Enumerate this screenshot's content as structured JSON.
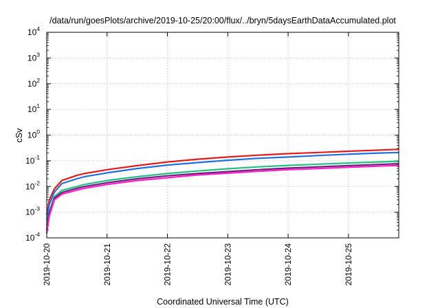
{
  "chart_data": {
    "type": "line",
    "title": "/data/run/goesPlots/archive/2019-10-25/20:00/flux/../bryn/5daysEarthDataAccumulated.plot",
    "xlabel": "Coordinated Universal Time (UTC)",
    "ylabel": "cSv",
    "yscale": "log",
    "ylim": [
      0.0001,
      10000
    ],
    "y_ticks": [
      {
        "base": "10",
        "exp": "-4"
      },
      {
        "base": "10",
        "exp": "-3"
      },
      {
        "base": "10",
        "exp": "-2"
      },
      {
        "base": "10",
        "exp": "-1"
      },
      {
        "base": "10",
        "exp": "0"
      },
      {
        "base": "10",
        "exp": "1"
      },
      {
        "base": "10",
        "exp": "2"
      },
      {
        "base": "10",
        "exp": "3"
      },
      {
        "base": "10",
        "exp": "4"
      }
    ],
    "xlim": [
      "2019-10-20",
      "2019-10-25T20:00"
    ],
    "x_ticks": [
      "2019-10-20",
      "2019-10-21",
      "2019-10-22",
      "2019-10-23",
      "2019-10-24",
      "2019-10-25"
    ],
    "grid": true,
    "series": [
      {
        "color": "#e31a1c",
        "x": [
          "2019-10-20T00:00",
          "2019-10-20T01:00",
          "2019-10-20T03:00",
          "2019-10-20T06:00",
          "2019-10-20T12:00",
          "2019-10-20T15:00",
          "2019-10-21T00:00",
          "2019-10-21T12:00",
          "2019-10-22T00:00",
          "2019-10-22T12:00",
          "2019-10-23T00:00",
          "2019-10-23T12:00",
          "2019-10-24T00:00",
          "2019-10-24T12:00",
          "2019-10-25T00:00",
          "2019-10-25T12:00",
          "2019-10-25T20:00"
        ],
        "y": [
          0.0008,
          0.003,
          0.008,
          0.017,
          0.027,
          0.032,
          0.045,
          0.065,
          0.09,
          0.115,
          0.14,
          0.165,
          0.19,
          0.21,
          0.235,
          0.26,
          0.28
        ]
      },
      {
        "color": "#1f6fe0",
        "x": [
          "2019-10-20T00:00",
          "2019-10-20T01:00",
          "2019-10-20T03:00",
          "2019-10-20T06:00",
          "2019-10-20T12:00",
          "2019-10-20T15:00",
          "2019-10-21T00:00",
          "2019-10-21T12:00",
          "2019-10-22T00:00",
          "2019-10-22T12:00",
          "2019-10-23T00:00",
          "2019-10-23T12:00",
          "2019-10-24T00:00",
          "2019-10-24T12:00",
          "2019-10-25T00:00",
          "2019-10-25T12:00",
          "2019-10-25T20:00"
        ],
        "y": [
          0.0005,
          0.002,
          0.006,
          0.013,
          0.02,
          0.024,
          0.034,
          0.05,
          0.068,
          0.085,
          0.105,
          0.125,
          0.14,
          0.16,
          0.18,
          0.2,
          0.21
        ]
      },
      {
        "color": "#20c080",
        "x": [
          "2019-10-20T00:00",
          "2019-10-20T01:00",
          "2019-10-20T03:00",
          "2019-10-20T06:00",
          "2019-10-20T12:00",
          "2019-10-20T15:00",
          "2019-10-21T00:00",
          "2019-10-21T12:00",
          "2019-10-22T00:00",
          "2019-10-22T12:00",
          "2019-10-23T00:00",
          "2019-10-23T12:00",
          "2019-10-24T00:00",
          "2019-10-24T12:00",
          "2019-10-25T00:00",
          "2019-10-25T12:00",
          "2019-10-25T20:00"
        ],
        "y": [
          0.0003,
          0.001,
          0.004,
          0.007,
          0.01,
          0.012,
          0.017,
          0.024,
          0.032,
          0.04,
          0.049,
          0.058,
          0.066,
          0.074,
          0.082,
          0.09,
          0.096
        ]
      },
      {
        "color": "#6b1f7a",
        "x": [
          "2019-10-20T00:00",
          "2019-10-20T01:00",
          "2019-10-20T03:00",
          "2019-10-20T06:00",
          "2019-10-20T12:00",
          "2019-10-20T15:00",
          "2019-10-21T00:00",
          "2019-10-21T12:00",
          "2019-10-22T00:00",
          "2019-10-22T12:00",
          "2019-10-23T00:00",
          "2019-10-23T12:00",
          "2019-10-24T00:00",
          "2019-10-24T12:00",
          "2019-10-25T00:00",
          "2019-10-25T12:00",
          "2019-10-25T20:00"
        ],
        "y": [
          0.0002,
          0.0009,
          0.0035,
          0.0058,
          0.0085,
          0.01,
          0.014,
          0.02,
          0.026,
          0.032,
          0.038,
          0.045,
          0.052,
          0.058,
          0.065,
          0.072,
          0.077
        ]
      },
      {
        "color": "#ff1fc8",
        "x": [
          "2019-10-20T00:00",
          "2019-10-20T01:00",
          "2019-10-20T03:00",
          "2019-10-20T06:00",
          "2019-10-20T12:00",
          "2019-10-20T15:00",
          "2019-10-21T00:00",
          "2019-10-21T12:00",
          "2019-10-22T00:00",
          "2019-10-22T12:00",
          "2019-10-23T00:00",
          "2019-10-23T12:00",
          "2019-10-24T00:00",
          "2019-10-24T12:00",
          "2019-10-25T00:00",
          "2019-10-25T12:00",
          "2019-10-25T20:00"
        ],
        "y": [
          0.00015,
          0.0007,
          0.003,
          0.005,
          0.0072,
          0.0085,
          0.012,
          0.017,
          0.022,
          0.028,
          0.033,
          0.039,
          0.045,
          0.05,
          0.056,
          0.062,
          0.066
        ]
      }
    ]
  }
}
